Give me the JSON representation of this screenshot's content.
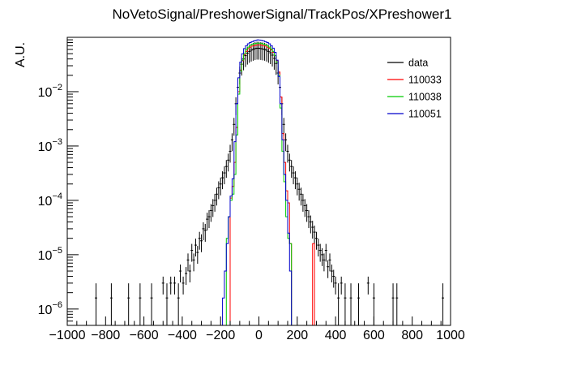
{
  "chart_data": {
    "type": "line",
    "title": "NoVetoSignal/PreshowerSignal/TrackPos/XPreshower1",
    "xlabel": "",
    "ylabel": "A.U.",
    "xlim": [
      -1000,
      1000
    ],
    "ylim": [
      5e-07,
      0.1
    ],
    "yscale": "log",
    "grid": false,
    "legend_position": "top-right",
    "x_ticks": [
      -1000,
      -800,
      -600,
      -400,
      -200,
      0,
      200,
      400,
      600,
      800,
      1000
    ],
    "y_ticks": [
      {
        "value": 1e-06,
        "mantissa": "10",
        "exp": "−6"
      },
      {
        "value": 1e-05,
        "mantissa": "10",
        "exp": "−5"
      },
      {
        "value": 0.0001,
        "mantissa": "10",
        "exp": "−4"
      },
      {
        "value": 0.001,
        "mantissa": "10",
        "exp": "−3"
      },
      {
        "value": 0.01,
        "mantissa": "10",
        "exp": "−2"
      }
    ],
    "series": [
      {
        "name": "data",
        "style": "points",
        "color": "#000000",
        "points": [
          [
            -850,
            1.6e-06
          ],
          [
            -770,
            1.6e-06
          ],
          [
            -680,
            1.6e-06
          ],
          [
            -620,
            1.6e-06
          ],
          [
            -560,
            1.6e-06
          ],
          [
            -500,
            3e-06
          ],
          [
            -480,
            1.6e-06
          ],
          [
            -460,
            3e-06
          ],
          [
            -440,
            3e-06
          ],
          [
            -420,
            1.6e-06
          ],
          [
            -410,
            5e-06
          ],
          [
            -395,
            3e-06
          ],
          [
            -380,
            4.5e-06
          ],
          [
            -370,
            8e-06
          ],
          [
            -360,
            5e-06
          ],
          [
            -350,
            1.2e-05
          ],
          [
            -340,
            8e-06
          ],
          [
            -330,
            1.5e-05
          ],
          [
            -320,
            1.1e-05
          ],
          [
            -310,
            2e-05
          ],
          [
            -300,
            1.8e-05
          ],
          [
            -290,
            3e-05
          ],
          [
            -280,
            2.8e-05
          ],
          [
            -270,
            4.5e-05
          ],
          [
            -260,
            5e-05
          ],
          [
            -250,
            6.5e-05
          ],
          [
            -240,
            8e-05
          ],
          [
            -230,
            0.0001
          ],
          [
            -220,
            0.00013
          ],
          [
            -210,
            0.00017
          ],
          [
            -200,
            0.0002
          ],
          [
            -190,
            0.00026
          ],
          [
            -180,
            0.00032
          ],
          [
            -170,
            0.00042
          ],
          [
            -160,
            0.00055
          ],
          [
            -150,
            0.0008
          ],
          [
            -140,
            0.0013
          ],
          [
            -130,
            0.0025
          ],
          [
            -120,
            0.006
          ],
          [
            -110,
            0.012
          ],
          [
            -100,
            0.022
          ],
          [
            -90,
            0.032
          ],
          [
            -80,
            0.04
          ],
          [
            -70,
            0.046
          ],
          [
            -60,
            0.051
          ],
          [
            -50,
            0.055
          ],
          [
            -40,
            0.058
          ],
          [
            -30,
            0.06
          ],
          [
            -20,
            0.062
          ],
          [
            -10,
            0.063
          ],
          [
            0,
            0.063
          ],
          [
            10,
            0.062
          ],
          [
            20,
            0.061
          ],
          [
            30,
            0.06
          ],
          [
            40,
            0.058
          ],
          [
            50,
            0.055
          ],
          [
            60,
            0.052
          ],
          [
            70,
            0.047
          ],
          [
            80,
            0.041
          ],
          [
            90,
            0.033
          ],
          [
            100,
            0.022
          ],
          [
            110,
            0.012
          ],
          [
            120,
            0.006
          ],
          [
            130,
            0.0025
          ],
          [
            140,
            0.0013
          ],
          [
            150,
            0.0008
          ],
          [
            160,
            0.00055
          ],
          [
            170,
            0.00042
          ],
          [
            180,
            0.00032
          ],
          [
            190,
            0.00026
          ],
          [
            200,
            0.0002
          ],
          [
            210,
            0.00016
          ],
          [
            220,
            0.00013
          ],
          [
            230,
            0.0001
          ],
          [
            240,
            8e-05
          ],
          [
            250,
            6.5e-05
          ],
          [
            260,
            5e-05
          ],
          [
            270,
            4e-05
          ],
          [
            280,
            3.2e-05
          ],
          [
            290,
            2.6e-05
          ],
          [
            300,
            2e-05
          ],
          [
            310,
            1.5e-05
          ],
          [
            320,
            1.2e-05
          ],
          [
            330,
            1e-05
          ],
          [
            340,
            8e-06
          ],
          [
            350,
            1.2e-05
          ],
          [
            360,
            6e-06
          ],
          [
            370,
            8e-06
          ],
          [
            380,
            5e-06
          ],
          [
            390,
            4e-06
          ],
          [
            400,
            3e-06
          ],
          [
            415,
            1.6e-06
          ],
          [
            430,
            3e-06
          ],
          [
            450,
            1.6e-06
          ],
          [
            480,
            1.6e-06
          ],
          [
            520,
            1.6e-06
          ],
          [
            570,
            3e-06
          ],
          [
            600,
            1.6e-06
          ],
          [
            700,
            1.6e-06
          ],
          [
            720,
            1.6e-06
          ],
          [
            960,
            1.6e-06
          ]
        ]
      },
      {
        "name": "110033",
        "style": "step",
        "color": "#ff0000",
        "edges": [
          -150,
          -140,
          -130,
          -120,
          -110,
          -100,
          -90,
          -80,
          -70,
          -60,
          -50,
          -40,
          -30,
          -20,
          -10,
          0,
          10,
          20,
          30,
          40,
          50,
          60,
          70,
          80,
          90,
          100,
          110,
          120,
          130,
          140,
          150,
          160,
          170,
          180,
          190,
          200,
          210,
          220,
          230,
          240,
          250,
          260,
          270,
          280,
          290
        ],
        "values": [
          0.00011,
          0.00018,
          0.0005,
          0.0022,
          0.01,
          0.025,
          0.037,
          0.048,
          0.055,
          0.062,
          0.066,
          0.069,
          0.07,
          0.072,
          0.073,
          0.073,
          0.072,
          0.07,
          0.069,
          0.066,
          0.063,
          0.059,
          0.053,
          0.046,
          0.037,
          0.023,
          0.008,
          0.0017,
          0.0005,
          0.00015,
          9e-05,
          1.6e-05,
          5e-07,
          5e-07,
          5e-07,
          5e-07,
          5e-07,
          5e-07,
          5e-07,
          5e-07,
          5e-07,
          5e-07,
          5e-07,
          1.6e-05,
          5e-07
        ]
      },
      {
        "name": "110038",
        "style": "step",
        "color": "#00cc00",
        "edges": [
          -200,
          -190,
          -180,
          -170,
          -160,
          -150,
          -140,
          -130,
          -120,
          -110,
          -100,
          -90,
          -80,
          -70,
          -60,
          -50,
          -40,
          -30,
          -20,
          -10,
          0,
          10,
          20,
          30,
          40,
          50,
          60,
          70,
          80,
          90,
          100,
          110,
          120,
          130,
          140,
          150,
          160,
          170,
          180
        ],
        "values": [
          5e-07,
          5e-07,
          5e-07,
          2e-05,
          5e-05,
          0.0001,
          0.00013,
          0.0003,
          0.0016,
          0.009,
          0.024,
          0.038,
          0.05,
          0.06,
          0.066,
          0.071,
          0.074,
          0.076,
          0.077,
          0.078,
          0.078,
          0.077,
          0.075,
          0.073,
          0.07,
          0.066,
          0.061,
          0.055,
          0.046,
          0.035,
          0.02,
          0.005,
          0.0008,
          0.00022,
          5e-05,
          2e-05,
          1.6e-05,
          5e-07,
          5e-07
        ]
      },
      {
        "name": "110051",
        "style": "step",
        "color": "#0000cc",
        "edges": [
          -190,
          -180,
          -170,
          -160,
          -150,
          -140,
          -130,
          -120,
          -110,
          -100,
          -90,
          -80,
          -70,
          -60,
          -50,
          -40,
          -30,
          -20,
          -10,
          0,
          10,
          20,
          30,
          40,
          50,
          60,
          70,
          80,
          90,
          100,
          110,
          120,
          130,
          140,
          150,
          160,
          170
        ],
        "values": [
          1.6e-06,
          5e-06,
          1.6e-05,
          5e-05,
          0.00012,
          0.00025,
          0.0012,
          0.006,
          0.018,
          0.035,
          0.05,
          0.062,
          0.07,
          0.076,
          0.08,
          0.083,
          0.086,
          0.088,
          0.09,
          0.089,
          0.088,
          0.086,
          0.083,
          0.08,
          0.076,
          0.07,
          0.063,
          0.053,
          0.038,
          0.019,
          0.006,
          0.0013,
          0.0003,
          0.0001,
          2.5e-05,
          5e-06,
          5e-07
        ]
      }
    ]
  }
}
